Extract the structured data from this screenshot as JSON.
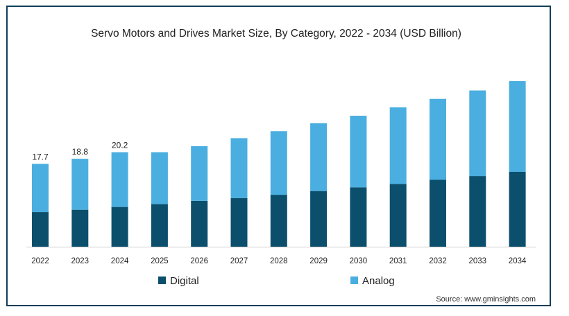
{
  "chart_data": {
    "type": "bar",
    "stacked": true,
    "title": "Servo Motors and Drives Market Size, By Category, 2022 - 2034 (USD Billion)",
    "categories": [
      "2022",
      "2023",
      "2024",
      "2025",
      "2026",
      "2027",
      "2028",
      "2029",
      "2030",
      "2031",
      "2032",
      "2033",
      "2034"
    ],
    "series": [
      {
        "name": "Digital",
        "color": "#0b4f6c",
        "values": [
          7.4,
          7.9,
          8.5,
          9.1,
          9.8,
          10.4,
          11.1,
          11.9,
          12.7,
          13.4,
          14.3,
          15.1,
          16.0
        ]
      },
      {
        "name": "Analog",
        "color": "#4aaee0",
        "values": [
          10.3,
          10.9,
          11.7,
          11.1,
          11.7,
          12.8,
          13.6,
          14.5,
          15.3,
          16.4,
          17.3,
          18.3,
          19.4
        ]
      }
    ],
    "totals": [
      17.7,
      18.8,
      20.2
    ],
    "data_labels": [
      "17.7",
      "18.8",
      "20.2"
    ],
    "ylim": [
      0,
      36
    ],
    "grid": false,
    "legend_position": "bottom",
    "source": "Source: www.gminsights.com"
  }
}
